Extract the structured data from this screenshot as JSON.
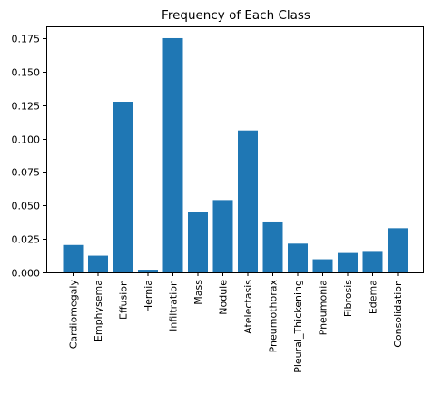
{
  "chart_data": {
    "type": "bar",
    "title": "Frequency of Each Class",
    "xlabel": "",
    "ylabel": "",
    "categories": [
      "Cardiomegaly",
      "Emphysema",
      "Effusion",
      "Hernia",
      "Infiltration",
      "Mass",
      "Nodule",
      "Atelectasis",
      "Pneumothorax",
      "Pleural_Thickening",
      "Pneumonia",
      "Fibrosis",
      "Edema",
      "Consolidation"
    ],
    "values": [
      0.0205,
      0.0125,
      0.1275,
      0.002,
      0.175,
      0.045,
      0.054,
      0.106,
      0.038,
      0.0215,
      0.0098,
      0.0145,
      0.016,
      0.033
    ],
    "ylim": [
      0,
      0.1838
    ],
    "yticks": [
      "0.000",
      "0.025",
      "0.050",
      "0.075",
      "0.100",
      "0.125",
      "0.150",
      "0.175"
    ],
    "ytick_values": [
      0,
      0.025,
      0.05,
      0.075,
      0.1,
      0.125,
      0.15,
      0.175
    ],
    "bar_color": "#1f77b4",
    "grid": false,
    "legend": "none"
  }
}
